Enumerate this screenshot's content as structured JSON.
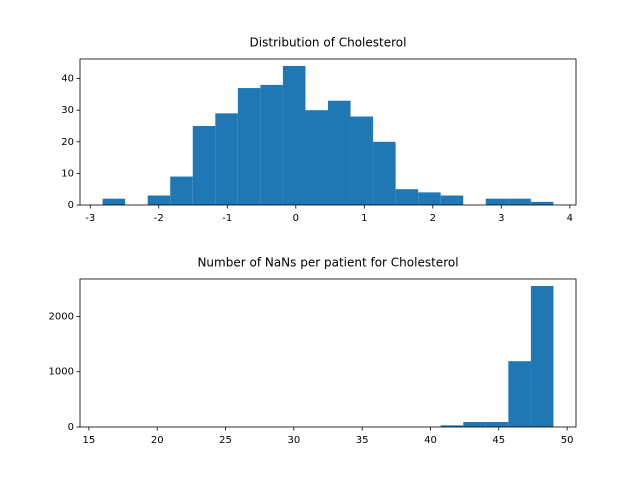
{
  "chart_data": [
    {
      "type": "histogram",
      "title": "Distribution of Cholesterol",
      "color": "#1f77b4",
      "bins": [
        -2.82,
        -2.491,
        -2.162,
        -1.833,
        -1.504,
        -1.175,
        -0.846,
        -0.517,
        -0.188,
        0.141,
        0.47,
        0.799,
        1.128,
        1.457,
        1.786,
        2.115,
        2.444,
        2.773,
        3.102,
        3.431,
        3.76
      ],
      "values": [
        2,
        0,
        3,
        9,
        25,
        29,
        37,
        38,
        44,
        30,
        33,
        28,
        20,
        5,
        4,
        3,
        0,
        2,
        2,
        1
      ],
      "xlim": [
        -3.15,
        4.09
      ],
      "xticks": [
        -3,
        -2,
        -1,
        0,
        1,
        2,
        3,
        4
      ],
      "ylim": [
        0,
        46.2
      ],
      "yticks": [
        0,
        10,
        20,
        30,
        40
      ]
    },
    {
      "type": "histogram",
      "title": "Number of NaNs per patient for Cholesterol",
      "color": "#1f77b4",
      "bins": [
        16,
        17.65,
        19.3,
        20.95,
        22.6,
        24.25,
        25.9,
        27.55,
        29.2,
        30.85,
        32.5,
        34.15,
        35.8,
        37.45,
        39.1,
        40.75,
        42.4,
        44.05,
        45.7,
        47.35,
        49
      ],
      "values": [
        0,
        0,
        0,
        0,
        0,
        0,
        0,
        0,
        0,
        0,
        0,
        0,
        0,
        0,
        0,
        30,
        90,
        90,
        1190,
        2550
      ],
      "xlim": [
        14.35,
        50.65
      ],
      "xticks": [
        15,
        20,
        25,
        30,
        35,
        40,
        45,
        50
      ],
      "ylim": [
        0,
        2677
      ],
      "yticks": [
        0,
        1000,
        2000
      ]
    }
  ]
}
